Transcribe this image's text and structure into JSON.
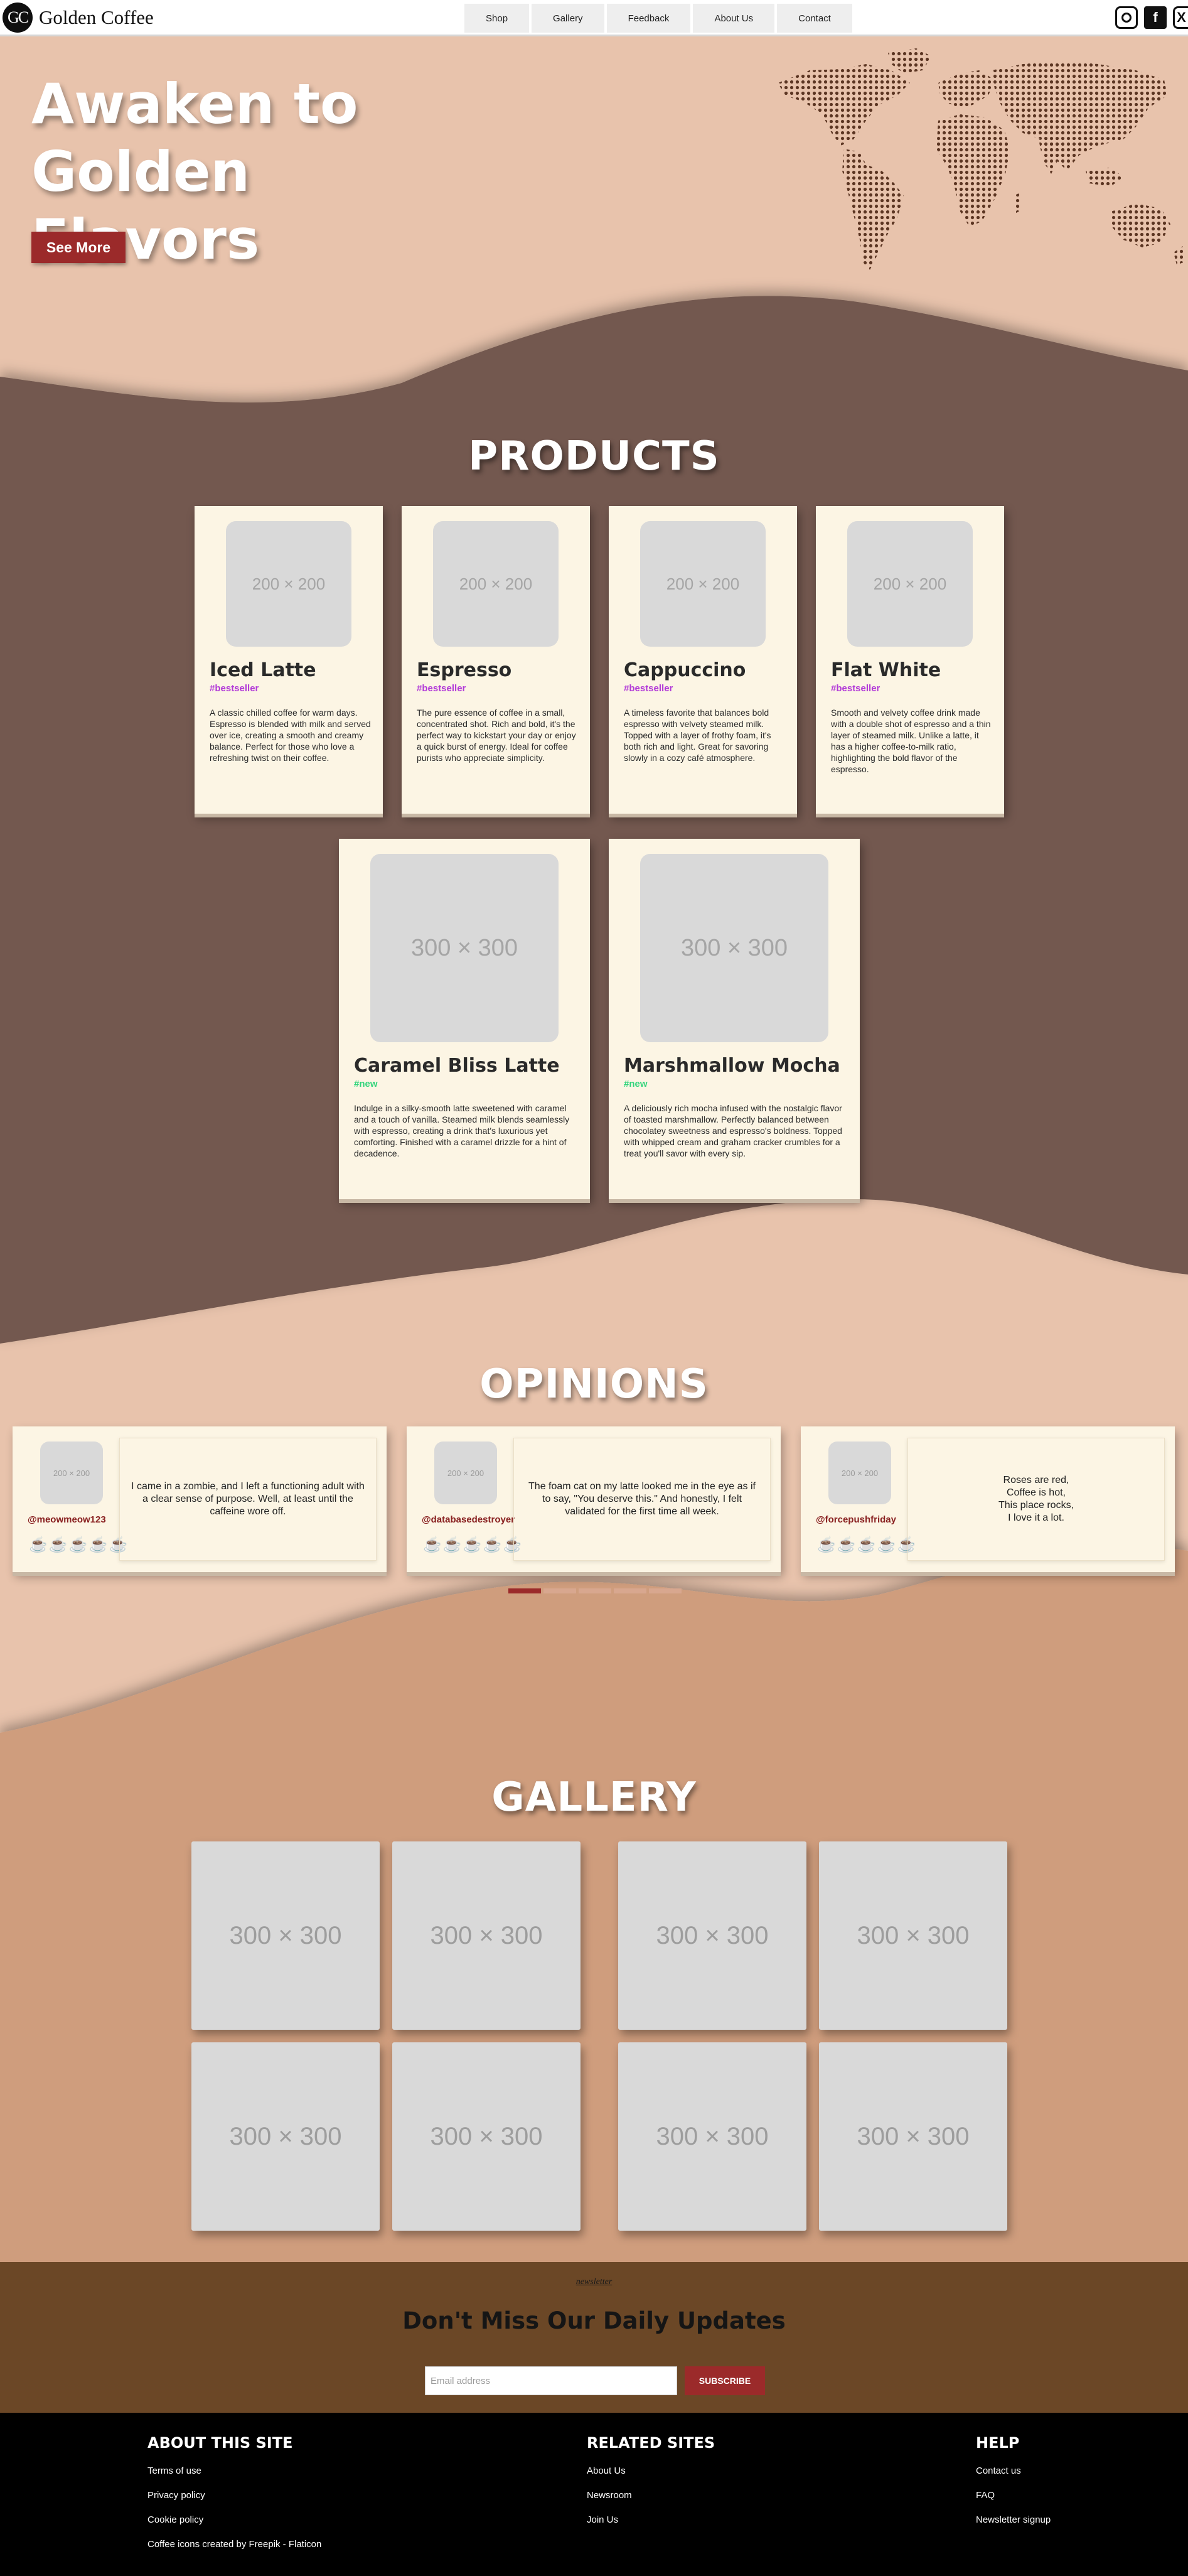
{
  "brand": {
    "logo_text": "GC",
    "name": "Golden Coffee"
  },
  "nav": {
    "tabs": [
      "Shop",
      "Gallery",
      "Feedback",
      "About Us",
      "Contact"
    ]
  },
  "social": {
    "instagram_icon": "instagram-icon",
    "facebook_icon": "facebook-icon",
    "facebook_glyph": "f",
    "x_icon": "x-icon",
    "x_glyph": "X"
  },
  "hero": {
    "title_line1": "Awaken to Golden",
    "title_line2": "Flavors",
    "button": "See More",
    "map_icon": "world-map-dots"
  },
  "products": {
    "title": "PRODUCTS",
    "items": [
      {
        "placeholder": "200 × 200",
        "name": "Iced Latte",
        "tag": "#bestseller",
        "desc": "A classic chilled coffee for warm days. Espresso is blended with milk and served over ice, creating a smooth and creamy balance. Perfect for those who love a refreshing twist on their coffee."
      },
      {
        "placeholder": "200 × 200",
        "name": "Espresso",
        "tag": "#bestseller",
        "desc": "The pure essence of coffee in a small, concentrated shot. Rich and bold, it's the perfect way to kickstart your day or enjoy a quick burst of energy. Ideal for coffee purists who appreciate simplicity."
      },
      {
        "placeholder": "200 × 200",
        "name": "Cappuccino",
        "tag": "#bestseller",
        "desc": "A timeless favorite that balances bold espresso with velvety steamed milk. Topped with a layer of frothy foam, it's both rich and light. Great for savoring slowly in a cozy café atmosphere."
      },
      {
        "placeholder": "200 × 200",
        "name": "Flat White",
        "tag": "#bestseller",
        "desc": "Smooth and velvety coffee drink made with a double shot of espresso and a thin layer of steamed milk. Unlike a latte, it has a higher coffee-to-milk ratio, highlighting the bold flavor of the espresso."
      },
      {
        "placeholder": "300 × 300",
        "name": "Caramel Bliss Latte",
        "tag": "#new",
        "desc": "Indulge in a silky-smooth latte sweetened with caramel and a touch of vanilla. Steamed milk blends seamlessly with espresso, creating a drink that's luxurious yet comforting. Finished with a caramel drizzle for a hint of decadence."
      },
      {
        "placeholder": "300 × 300",
        "name": "Marshmallow Mocha",
        "tag": "#new",
        "desc": "A deliciously rich mocha infused with the nostalgic flavor of toasted marshmallow. Perfectly balanced between chocolatey sweetness and espresso's boldness. Topped with whipped cream and graham cracker crumbles for a treat you'll savor with every sip."
      }
    ]
  },
  "opinions": {
    "title": "OPINIONS",
    "items": [
      {
        "avatar": "200 × 200",
        "user": "@meowmeow123",
        "quote": "I came in a zombie, and I left a functioning adult with a clear sense of purpose. Well, at least until the caffeine wore off.",
        "rating": 5
      },
      {
        "avatar": "200 × 200",
        "user": "@databasedestroyer",
        "quote": "The foam cat on my latte looked me in the eye as if to say, \"You deserve this.\" And honestly, I felt validated for the first time all week.",
        "rating": 5
      },
      {
        "avatar": "200 × 200",
        "user": "@forcepushfriday",
        "quote": "Roses are red,\nCoffee is hot,\nThis place rocks,\nI love it a lot.",
        "rating": 5
      }
    ],
    "cup_icon": "coffee-cup-icon",
    "cup_glyph": "☕",
    "slides": 5,
    "active_slide": 1
  },
  "gallery": {
    "title": "GALLERY",
    "placeholder": "300 × 300",
    "tiles": 8
  },
  "newsletter": {
    "label": "newsletter",
    "title": "Don't Miss Our Daily Updates",
    "email_placeholder": "Email address",
    "button": "SUBSCRIBE"
  },
  "footer": {
    "columns": [
      {
        "heading": "ABOUT THIS SITE",
        "links": [
          "Terms of use",
          "Privacy policy",
          "Cookie policy",
          "Coffee icons created by Freepik - Flaticon"
        ]
      },
      {
        "heading": "RELATED SITES",
        "links": [
          "About Us",
          "Newsroom",
          "Join Us"
        ]
      },
      {
        "heading": "HELP",
        "links": [
          "Contact us",
          "FAQ",
          "Newsletter signup"
        ]
      }
    ]
  },
  "colors": {
    "peach": "#e8c3ac",
    "mocha": "#735950",
    "tan": "#cf9d7d",
    "brown": "#6b4726",
    "red": "#9b2a2a",
    "cream": "#fcf5e4"
  }
}
